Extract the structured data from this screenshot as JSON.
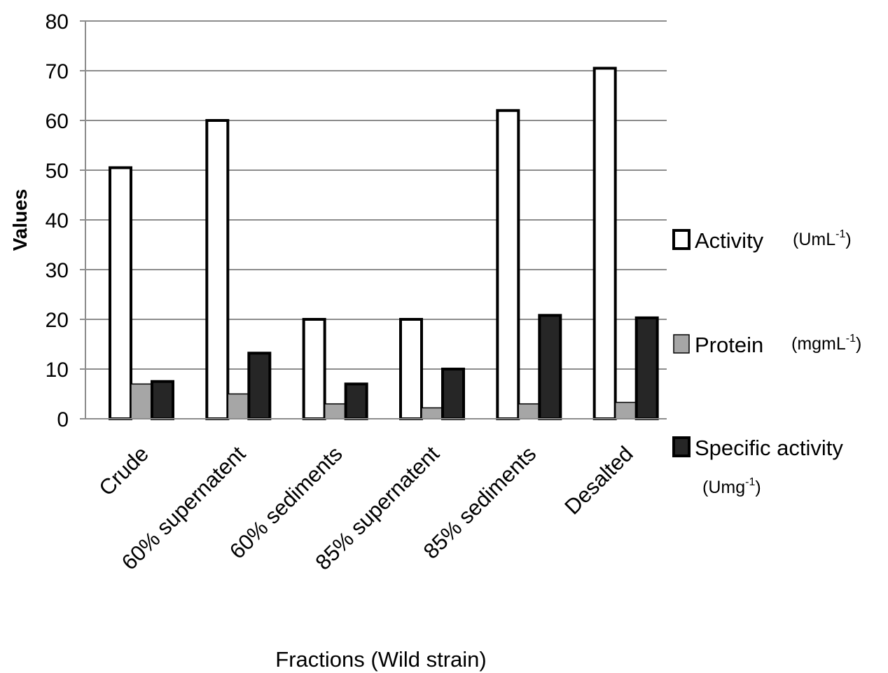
{
  "chart_data": {
    "type": "bar",
    "xlabel": "Fractions (Wild strain)",
    "ylabel": "Values",
    "ylim": [
      0,
      80
    ],
    "yticks": [
      0,
      10,
      20,
      30,
      40,
      50,
      60,
      70,
      80
    ],
    "grid": true,
    "legend": "right",
    "categories": [
      "Crude",
      "60% supernatent",
      "60% sediments",
      "85% supernatent",
      "85% sediments",
      "Desalted"
    ],
    "series": [
      {
        "name": "Activity",
        "unit": "(UmL",
        "unit_sup": "-1",
        "unit_close": ")",
        "color": "#ffffff",
        "values": [
          50.5,
          60,
          20,
          20,
          62,
          70.5
        ]
      },
      {
        "name": "Protein",
        "unit": "(mgmL",
        "unit_sup": "-1",
        "unit_close": ")",
        "color": "#a6a6a6",
        "values": [
          7,
          5,
          3,
          2.2,
          3,
          3.3
        ]
      },
      {
        "name": "Specific activity",
        "unit": "(Umg",
        "unit_sup": "-1",
        "unit_close": ")",
        "color": "#262626",
        "values": [
          7.5,
          13.2,
          7,
          10,
          20.8,
          20.3
        ]
      }
    ]
  }
}
